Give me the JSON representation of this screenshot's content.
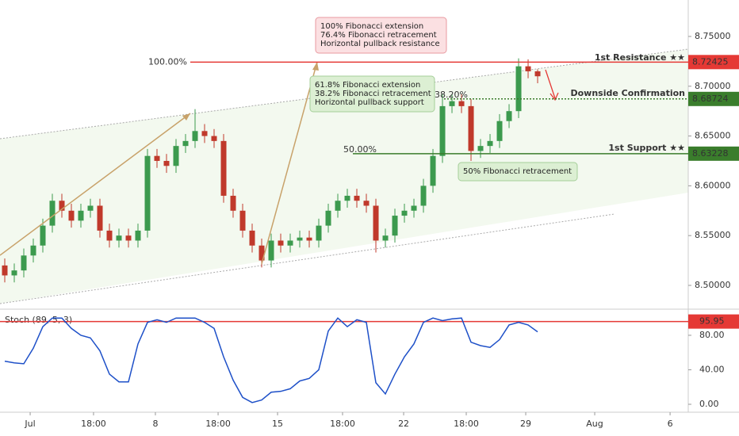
{
  "chart_data": {
    "type": "candlestick",
    "title": "Stoch (89, 5, 3)",
    "xticks": [
      {
        "value": 2.67,
        "label": "Jul"
      },
      {
        "value": 9.33,
        "label": "18:00"
      },
      {
        "value": 15.83,
        "label": "8"
      },
      {
        "value": 22.42,
        "label": "18:00"
      },
      {
        "value": 28.67,
        "label": "15"
      },
      {
        "value": 35.5,
        "label": "18:00"
      },
      {
        "value": 41.92,
        "label": "22"
      },
      {
        "value": 48.5,
        "label": "18:00"
      },
      {
        "value": 54.75,
        "label": "29"
      },
      {
        "value": 62,
        "label": "Aug"
      },
      {
        "value": 69.92,
        "label": "6"
      }
    ],
    "xlim": [
      -0.5,
      71.83
    ],
    "ylim": [
      8.4777,
      8.7866
    ],
    "yticks": [
      {
        "value": 8.75,
        "label": "8.75000"
      },
      {
        "value": 8.7,
        "label": "8.70000"
      },
      {
        "value": 8.65,
        "label": "8.65000"
      },
      {
        "value": 8.6,
        "label": "8.60000"
      },
      {
        "value": 8.55,
        "label": "8.55000"
      },
      {
        "value": 8.5,
        "label": "8.50000"
      }
    ],
    "up_color": "#3c9a4e",
    "down_color": "#c0392b",
    "open": [
      8.52,
      8.51,
      8.515,
      8.53,
      8.54,
      8.56,
      8.585,
      8.575,
      8.565,
      8.575,
      8.58,
      8.555,
      8.545,
      8.55,
      8.545,
      8.555,
      8.63,
      8.625,
      8.62,
      8.64,
      8.645,
      8.655,
      8.65,
      8.645,
      8.59,
      8.575,
      8.555,
      8.54,
      8.525,
      8.545,
      8.54,
      8.545,
      8.548,
      8.545,
      8.56,
      8.575,
      8.585,
      8.59,
      8.585,
      8.58,
      8.545,
      8.55,
      8.57,
      8.575,
      8.58,
      8.6,
      8.63,
      8.68,
      8.685,
      8.68,
      8.635,
      8.64,
      8.645,
      8.665,
      8.675,
      8.72,
      8.715
    ],
    "high": [
      8.527,
      8.522,
      8.537,
      8.547,
      8.567,
      8.592,
      8.592,
      8.582,
      8.582,
      8.587,
      8.587,
      8.562,
      8.557,
      8.557,
      8.562,
      8.637,
      8.637,
      8.632,
      8.647,
      8.652,
      8.677,
      8.662,
      8.657,
      8.652,
      8.597,
      8.582,
      8.562,
      8.547,
      8.552,
      8.552,
      8.552,
      8.555,
      8.555,
      8.567,
      8.582,
      8.592,
      8.597,
      8.597,
      8.592,
      8.587,
      8.557,
      8.577,
      8.582,
      8.587,
      8.607,
      8.637,
      8.692,
      8.692,
      8.692,
      8.687,
      8.647,
      8.652,
      8.672,
      8.682,
      8.728,
      8.727,
      8.717
    ],
    "low": [
      8.503,
      8.503,
      8.508,
      8.523,
      8.533,
      8.553,
      8.568,
      8.558,
      8.558,
      8.568,
      8.548,
      8.538,
      8.538,
      8.538,
      8.538,
      8.548,
      8.618,
      8.613,
      8.613,
      8.633,
      8.638,
      8.643,
      8.638,
      8.583,
      8.568,
      8.548,
      8.533,
      8.518,
      8.518,
      8.533,
      8.533,
      8.538,
      8.538,
      8.538,
      8.553,
      8.568,
      8.578,
      8.578,
      8.573,
      8.533,
      8.538,
      8.543,
      8.563,
      8.568,
      8.573,
      8.593,
      8.623,
      8.673,
      8.673,
      8.625,
      8.628,
      8.633,
      8.638,
      8.658,
      8.668,
      8.708,
      8.703
    ],
    "close": [
      8.51,
      8.515,
      8.53,
      8.54,
      8.56,
      8.585,
      8.575,
      8.565,
      8.575,
      8.58,
      8.555,
      8.545,
      8.55,
      8.545,
      8.555,
      8.63,
      8.625,
      8.62,
      8.64,
      8.645,
      8.655,
      8.65,
      8.645,
      8.59,
      8.575,
      8.555,
      8.54,
      8.525,
      8.545,
      8.54,
      8.545,
      8.548,
      8.545,
      8.56,
      8.575,
      8.585,
      8.59,
      8.585,
      8.58,
      8.545,
      8.55,
      8.57,
      8.575,
      8.58,
      8.6,
      8.63,
      8.68,
      8.685,
      8.68,
      8.635,
      8.64,
      8.645,
      8.665,
      8.675,
      8.72,
      8.715,
      8.71
    ],
    "levels": [
      {
        "name": "1st Resistance ★★",
        "value": 8.72425,
        "label": "8.72425",
        "fib": "100.00%",
        "color": "#e53935",
        "style": "solid"
      },
      {
        "name": "Downside Confirmation",
        "value": 8.68724,
        "label": "8.68724",
        "fib": "38.20%",
        "color": "#3a7d2c",
        "style": "dotted"
      },
      {
        "name": "1st Support ★★",
        "value": 8.63228,
        "label": "8.63228",
        "fib": "50.00%",
        "color": "#3a7d2c",
        "style": "solid"
      }
    ],
    "annotations": [
      {
        "lines": [
          "100% Fibonacci extension",
          "76.4% Fibonacci retracement",
          "Horizontal pullback resistance"
        ]
      },
      {
        "lines": [
          "61.8% Fibonacci extension",
          "38.2% Fibonacci retracement",
          "Horizontal pullback support"
        ]
      },
      {
        "lines": [
          "50% Fibonacci retracement"
        ]
      }
    ],
    "stoch": {
      "color": "#1e50c8",
      "ylim": [
        -9.2,
        105.7
      ],
      "yticks": [
        {
          "value": 80,
          "label": "80.00"
        },
        {
          "value": 40,
          "label": "40.00"
        },
        {
          "value": 0,
          "label": "0.00"
        }
      ],
      "level": 95.95,
      "level_label": "95.95",
      "level_color": "#e53935",
      "values": [
        50,
        48,
        47,
        65,
        90,
        100,
        100,
        88,
        80,
        77,
        62,
        35,
        26,
        26,
        70,
        95,
        98,
        95,
        100,
        100,
        100,
        95,
        88,
        55,
        28,
        8,
        2,
        5,
        14,
        15,
        18,
        27,
        30,
        40,
        85,
        100,
        90,
        98,
        95,
        25,
        12,
        35,
        55,
        70,
        95,
        100,
        97,
        99,
        100,
        72,
        68,
        66,
        75,
        92,
        95,
        92,
        84
      ]
    }
  }
}
